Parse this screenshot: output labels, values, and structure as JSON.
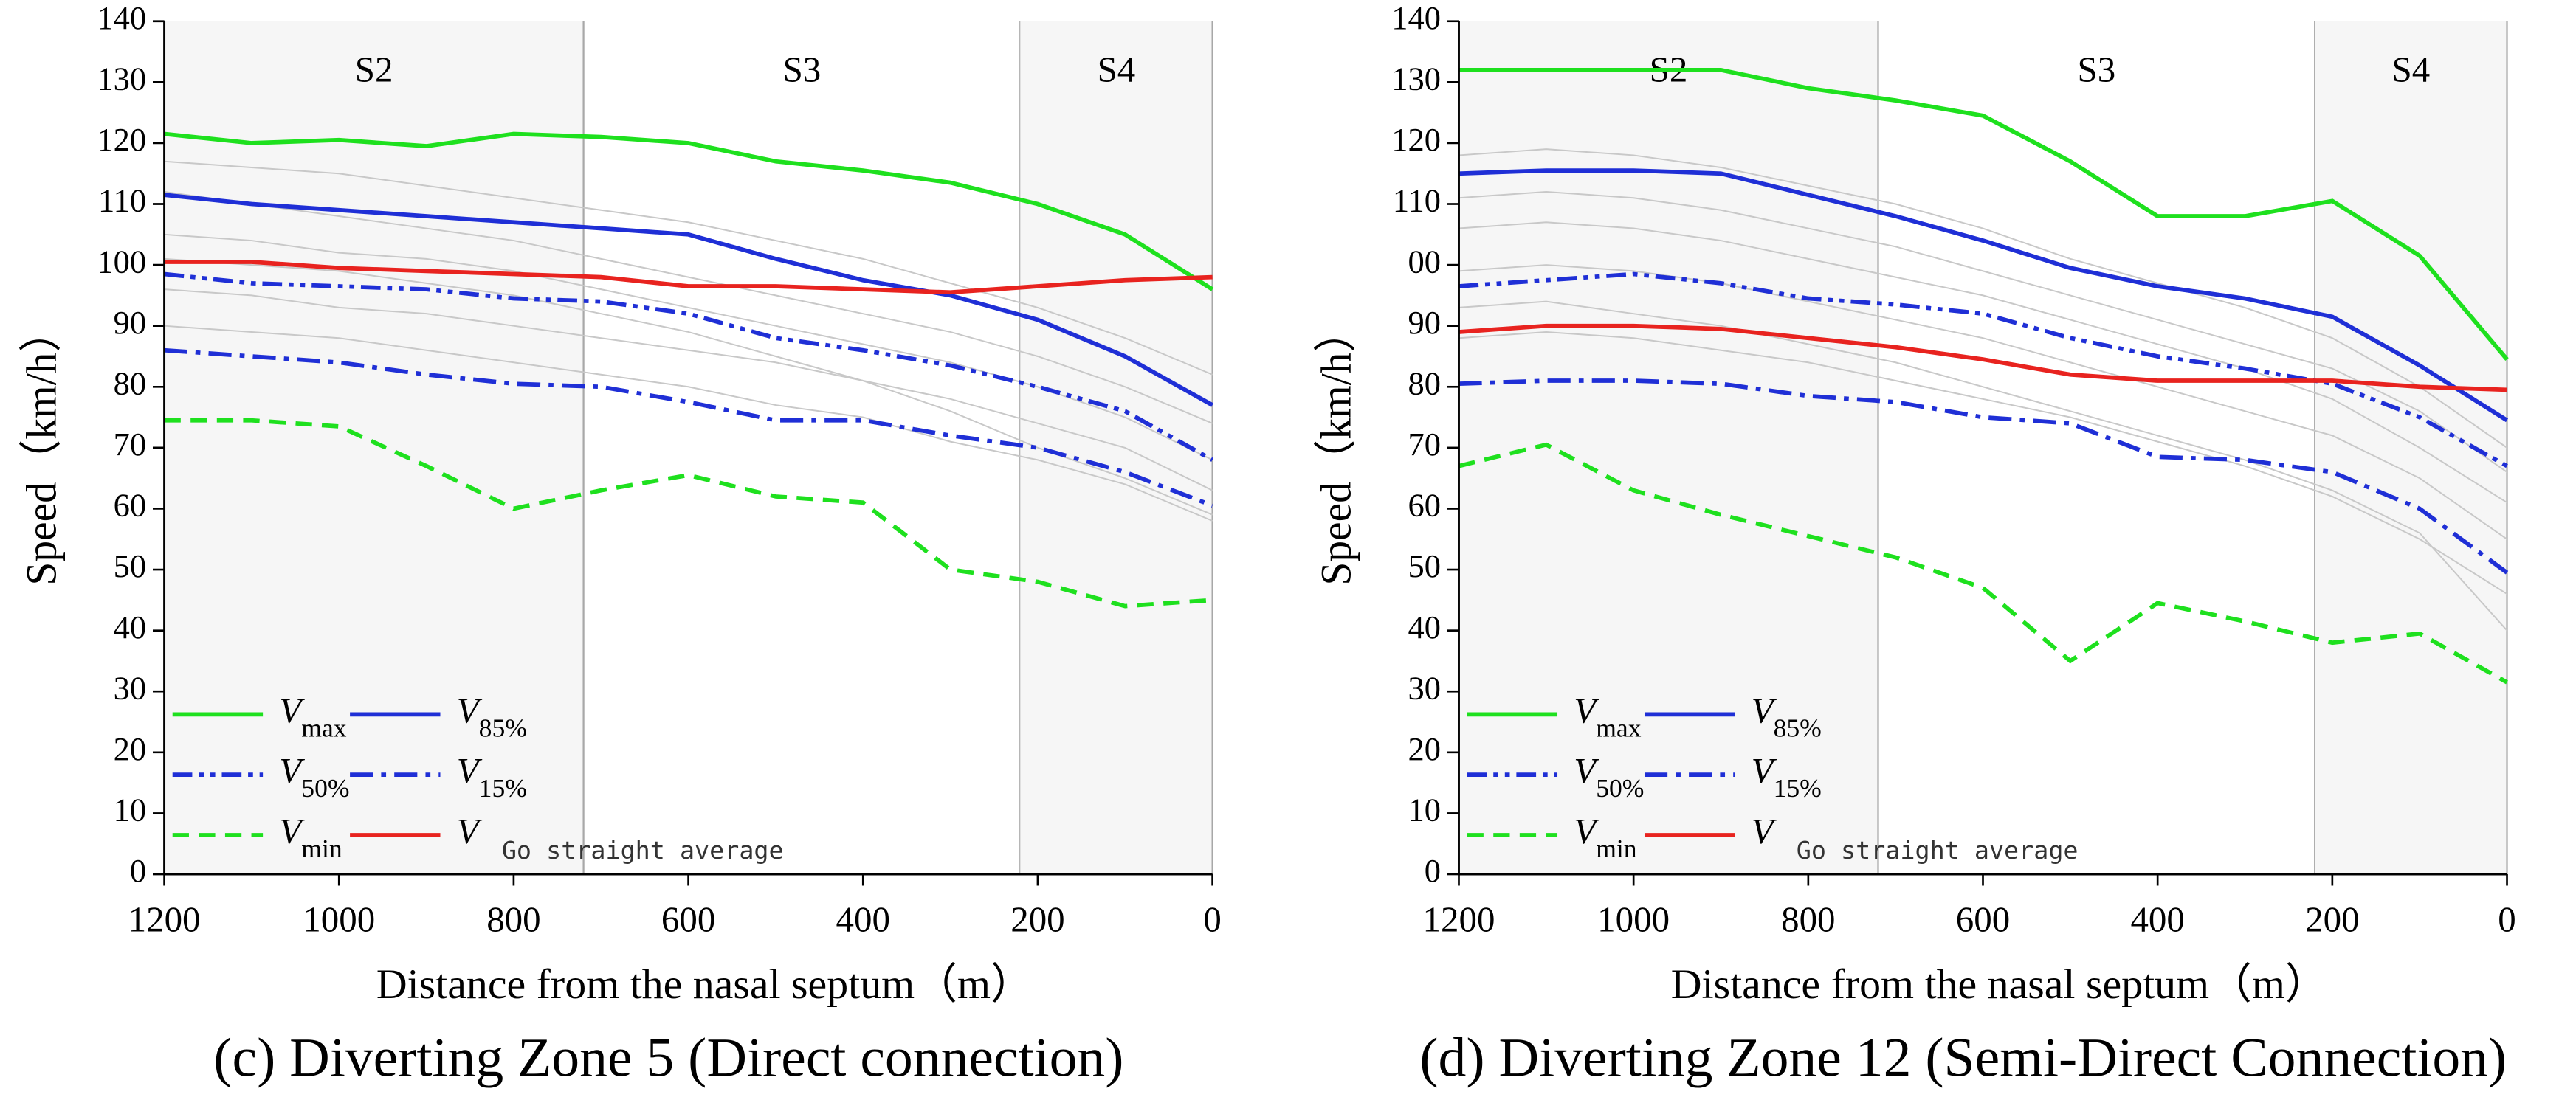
{
  "chart_data": [
    {
      "type": "line",
      "caption": "(c) Diverting Zone 5 (Direct connection)",
      "x_label": "Distance from the nasal septum（m）",
      "y_label": "Speed（km/h）",
      "x": [
        1200,
        1100,
        1000,
        900,
        800,
        700,
        600,
        500,
        400,
        300,
        200,
        100,
        0
      ],
      "xlim": [
        1200,
        0
      ],
      "ylim": [
        0,
        140
      ],
      "xticks": [
        1200,
        1000,
        800,
        600,
        400,
        200,
        0
      ],
      "yticks": [
        0,
        10,
        20,
        30,
        40,
        50,
        60,
        70,
        80,
        90,
        100,
        110,
        120,
        130,
        140
      ],
      "regions": [
        {
          "label": "S2",
          "from": 1200,
          "to": 720,
          "shaded": true
        },
        {
          "label": "S3",
          "from": 720,
          "to": 220,
          "shaded": false
        },
        {
          "label": "S4",
          "from": 220,
          "to": 0,
          "shaded": true
        }
      ],
      "series": [
        {
          "color": "#c8c8c8",
          "values": [
            112,
            110,
            108,
            106,
            104,
            101,
            98,
            95,
            92,
            89,
            85,
            80,
            74
          ]
        },
        {
          "color": "#c8c8c8",
          "values": [
            105,
            104,
            102,
            101,
            99,
            96,
            93,
            90,
            87,
            84,
            80,
            75,
            68
          ]
        },
        {
          "color": "#c8c8c8",
          "values": [
            96,
            95,
            93,
            92,
            90,
            88,
            86,
            84,
            81,
            78,
            74,
            70,
            63
          ]
        },
        {
          "color": "#c8c8c8",
          "values": [
            90,
            89,
            88,
            86,
            84,
            82,
            80,
            77,
            75,
            71,
            68,
            64,
            58
          ]
        },
        {
          "color": "#c8c8c8",
          "values": [
            117,
            116,
            115,
            113,
            111,
            109,
            107,
            104,
            101,
            97,
            93,
            88,
            82
          ]
        },
        {
          "color": "#c8c8c8",
          "values": [
            101,
            100,
            99,
            97,
            95,
            92,
            89,
            85,
            81,
            76,
            70,
            65,
            59
          ]
        },
        {
          "name": "Vmax",
          "color": "#1ee01e",
          "dash": "",
          "values": [
            121.5,
            120,
            120.5,
            119.5,
            121.5,
            121,
            120,
            117,
            115.5,
            113.5,
            110,
            105,
            96
          ]
        },
        {
          "name": "V85%",
          "color": "#1f2fd6",
          "dash": "",
          "values": [
            111.5,
            110,
            109,
            108,
            107,
            106,
            105,
            101,
            97.5,
            95,
            91,
            85,
            77
          ]
        },
        {
          "name": "V50%",
          "color": "#1f2fd6",
          "dash": "12 4 3 4 3 4",
          "values": [
            98.5,
            97,
            96.5,
            96,
            94.5,
            94,
            92,
            88,
            86,
            83.5,
            80,
            76,
            68
          ]
        },
        {
          "name": "V15%",
          "color": "#1f2fd6",
          "dash": "14 5 3 5",
          "values": [
            86,
            85,
            84,
            82,
            80.5,
            80,
            77.5,
            74.5,
            74.5,
            72,
            70,
            66,
            60.5
          ]
        },
        {
          "name": "Vmin",
          "color": "#1ee01e",
          "dash": "10 6",
          "values": [
            74.5,
            74.5,
            73.5,
            67,
            60,
            63,
            65.5,
            62,
            61,
            50,
            48,
            44,
            45
          ]
        },
        {
          "name": "VGo straight average",
          "color": "#e8231f",
          "dash": "",
          "sub_font": "mono",
          "values": [
            100.5,
            100.5,
            99.5,
            99,
            98.5,
            98,
            96.5,
            96.5,
            96,
            95.5,
            96.5,
            97.5,
            98
          ]
        }
      ]
    },
    {
      "type": "line",
      "caption": "(d) Diverting Zone 12 (Semi-Direct Connection)",
      "x_label": "Distance from the nasal septum（m）",
      "y_label": "Speed（km/h）",
      "x": [
        1200,
        1100,
        1000,
        900,
        800,
        700,
        600,
        500,
        400,
        300,
        200,
        100,
        0
      ],
      "xlim": [
        1200,
        0
      ],
      "ylim": [
        0,
        140
      ],
      "xticks": [
        1200,
        1000,
        800,
        600,
        400,
        200,
        0
      ],
      "yticks": [
        0,
        10,
        20,
        30,
        40,
        50,
        60,
        70,
        80,
        90,
        {
          "value": 100,
          "label": "00"
        },
        110,
        120,
        130,
        140
      ],
      "regions": [
        {
          "label": "S2",
          "from": 1200,
          "to": 720,
          "shaded": true
        },
        {
          "label": "S3",
          "from": 720,
          "to": 220,
          "shaded": false
        },
        {
          "label": "S4",
          "from": 220,
          "to": 0,
          "shaded": true
        }
      ],
      "series": [
        {
          "color": "#c8c8c8",
          "values": [
            118,
            119,
            118,
            116,
            113,
            110,
            106,
            101,
            97,
            93,
            88,
            80,
            70
          ]
        },
        {
          "color": "#c8c8c8",
          "values": [
            106,
            107,
            106,
            104,
            101,
            98,
            95,
            91,
            87,
            83,
            78,
            70,
            61
          ]
        },
        {
          "color": "#c8c8c8",
          "values": [
            99,
            100,
            99,
            97,
            94,
            91,
            88,
            84,
            80,
            76,
            72,
            65,
            55
          ]
        },
        {
          "color": "#c8c8c8",
          "values": [
            88,
            89,
            88,
            86,
            84,
            81,
            78,
            75,
            71,
            67,
            62,
            55,
            46
          ]
        },
        {
          "color": "#c8c8c8",
          "values": [
            111,
            112,
            111,
            109,
            106,
            103,
            99,
            95,
            91,
            87,
            83,
            76,
            66
          ]
        },
        {
          "color": "#c8c8c8",
          "values": [
            93,
            94,
            92,
            90,
            87,
            84,
            80,
            76,
            72,
            68,
            63,
            56,
            40
          ]
        },
        {
          "name": "Vmax",
          "color": "#1ee01e",
          "dash": "",
          "values": [
            132,
            132,
            132,
            132,
            129,
            127,
            124.5,
            117,
            108,
            108,
            110.5,
            101.5,
            84.5
          ]
        },
        {
          "name": "V85%",
          "color": "#1f2fd6",
          "dash": "",
          "values": [
            115,
            115.5,
            115.5,
            115,
            111.5,
            108,
            104,
            99.5,
            96.5,
            94.5,
            91.5,
            83.5,
            74.5
          ]
        },
        {
          "name": "V50%",
          "color": "#1f2fd6",
          "dash": "12 4 3 4 3 4",
          "values": [
            96.5,
            97.5,
            98.5,
            97,
            94.5,
            93.5,
            92,
            88,
            85,
            83,
            80.5,
            75,
            67
          ]
        },
        {
          "name": "V15%",
          "color": "#1f2fd6",
          "dash": "14 5 3 5",
          "values": [
            80.5,
            81,
            81,
            80.5,
            78.5,
            77.5,
            75,
            74,
            68.5,
            68,
            66,
            60,
            49.5
          ]
        },
        {
          "name": "Vmin",
          "color": "#1ee01e",
          "dash": "10 6",
          "values": [
            67,
            70.5,
            63,
            59,
            55.5,
            52,
            47,
            35,
            44.5,
            41.5,
            38,
            39.5,
            31.5
          ]
        },
        {
          "name": "VGo straight average",
          "color": "#e8231f",
          "dash": "",
          "sub_font": "mono",
          "values": [
            89,
            90,
            90,
            89.5,
            88,
            86.5,
            84.5,
            82,
            81,
            81,
            81,
            80,
            79.5
          ]
        }
      ]
    }
  ]
}
